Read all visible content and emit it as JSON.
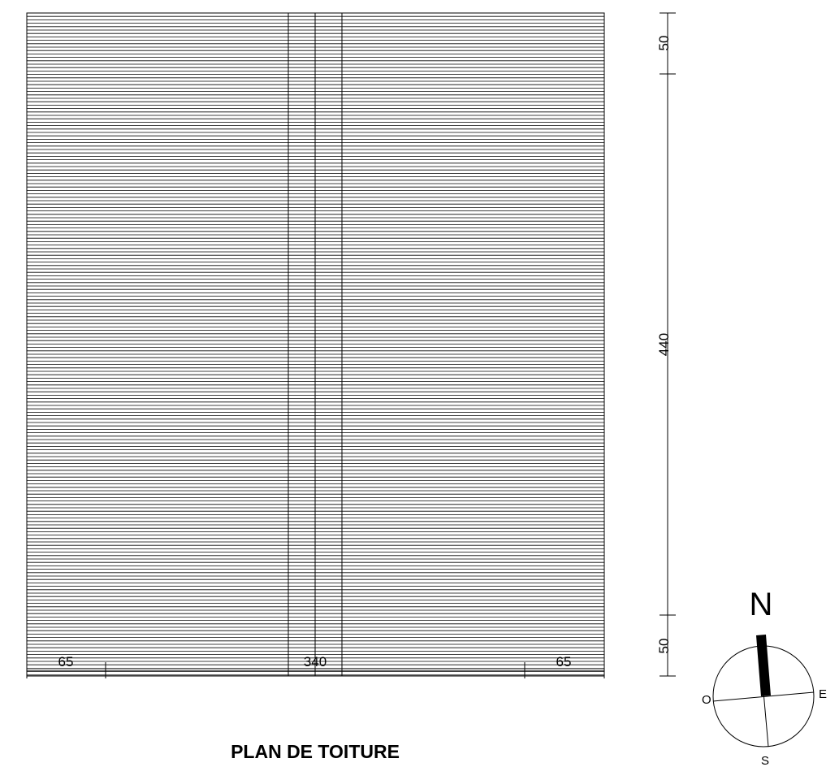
{
  "title": "PLAN DE TOITURE",
  "dimensions": {
    "horizontal": [
      "65",
      "340",
      "65"
    ],
    "vertical": [
      "50",
      "440",
      "50"
    ]
  },
  "compass": {
    "north": "N",
    "east": "E",
    "west": "O",
    "south": "S"
  },
  "colors": {
    "line": "#000000",
    "background": "#ffffff"
  }
}
